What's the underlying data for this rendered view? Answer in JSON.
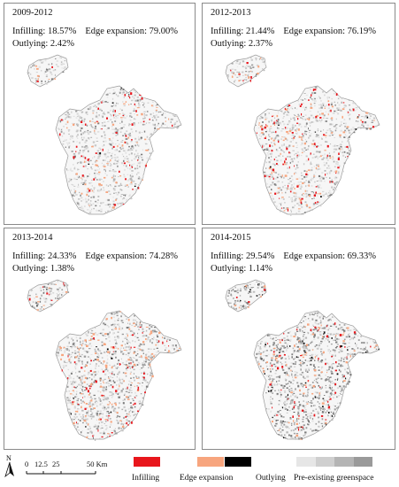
{
  "panels": [
    {
      "period": "2009-2012",
      "infilling": "Infilling: 18.57%",
      "edge": "Edge expansion: 79.00%",
      "outlying": "Outlying: 2.42%"
    },
    {
      "period": "2012-2013",
      "infilling": "Infilling: 21.44%",
      "edge": "Edge expansion: 76.19%",
      "outlying": "Outlying: 2.37%"
    },
    {
      "period": "2013-2014",
      "infilling": "Infilling: 24.33%",
      "edge": "Edge expansion: 74.28%",
      "outlying": "Outlying: 1.38%"
    },
    {
      "period": "2014-2015",
      "infilling": "Infilling: 29.54%",
      "edge": "Edge expansion: 69.33%",
      "outlying": "Outlying: 1.14%"
    }
  ],
  "legend": {
    "north": "N",
    "scale": {
      "ticks": [
        "0",
        "12.5",
        "25",
        "50 Km"
      ]
    },
    "items": [
      {
        "label": "Infilling",
        "color": "#e8161c"
      },
      {
        "label": "Edge expansion",
        "color": "#f7a57e"
      },
      {
        "label": "Outlying",
        "color": "#000000"
      },
      {
        "label": "Pre-existing greenspace",
        "colors": [
          "#e6e6e6",
          "#cfcfcf",
          "#b4b4b4",
          "#9a9a9a"
        ]
      }
    ]
  },
  "colors": {
    "infilling": "#e8161c",
    "edge_expansion": "#f7a57e",
    "outlying": "#000000",
    "greenspace": "#d0d0d0"
  }
}
